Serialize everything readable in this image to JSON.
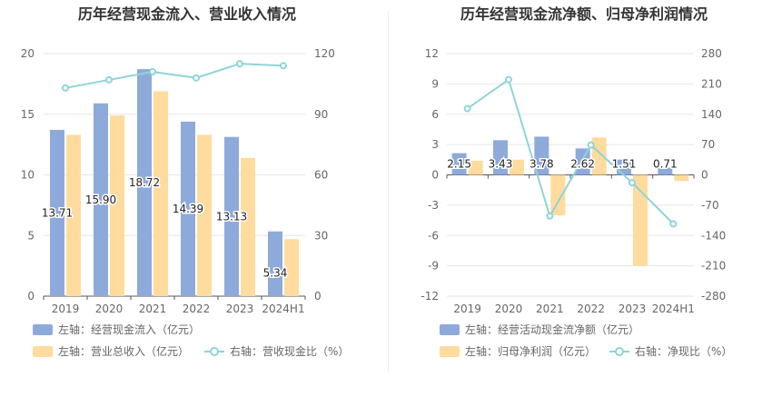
{
  "chart_data": [
    {
      "type": "bar",
      "title": "历年经营现金流入、营业收入情况",
      "categories": [
        "2019",
        "2020",
        "2021",
        "2022",
        "2023",
        "2024H1"
      ],
      "left_axis": {
        "ticks": [
          "0",
          "5",
          "10",
          "15",
          "20"
        ],
        "range": [
          0,
          20
        ]
      },
      "right_axis": {
        "ticks": [
          "0",
          "30",
          "60",
          "90",
          "120"
        ],
        "range": [
          0,
          120
        ]
      },
      "grid": true,
      "legend_placement": "bottom",
      "series": [
        {
          "name": "左轴：经营现金流入（亿元）",
          "type": "bar",
          "axis": "left",
          "color": "#8eaadb",
          "values": [
            13.71,
            15.9,
            18.72,
            14.39,
            13.13,
            5.34
          ],
          "labels": [
            "13.71",
            "15.90",
            "18.72",
            "14.39",
            "13.13",
            "5.34"
          ]
        },
        {
          "name": "左轴：营业总收入（亿元）",
          "type": "bar",
          "axis": "left",
          "color": "#ffdb9e",
          "values": [
            13.3,
            14.9,
            16.9,
            13.3,
            11.4,
            4.7
          ]
        },
        {
          "name": "右轴：营收现金比（%）",
          "type": "line",
          "axis": "right",
          "color": "#8fd3d9",
          "values": [
            103,
            107,
            111,
            108,
            115,
            114
          ]
        }
      ]
    },
    {
      "type": "bar",
      "title": "历年经营现金流净额、归母净利润情况",
      "categories": [
        "2019",
        "2020",
        "2021",
        "2022",
        "2023",
        "2024H1"
      ],
      "left_axis": {
        "ticks": [
          "-12",
          "-9",
          "-6",
          "-3",
          "0",
          "3",
          "6",
          "9",
          "12"
        ],
        "range": [
          -12,
          12
        ]
      },
      "right_axis": {
        "ticks": [
          "-280",
          "-210",
          "-140",
          "-70",
          "0",
          "70",
          "140",
          "210",
          "280"
        ],
        "range": [
          -280,
          280
        ]
      },
      "grid": true,
      "legend_placement": "bottom",
      "series": [
        {
          "name": "左轴：经营活动现金流净额（亿元）",
          "type": "bar",
          "axis": "left",
          "color": "#8eaadb",
          "values": [
            2.15,
            3.43,
            3.78,
            2.62,
            1.51,
            0.71
          ],
          "labels": [
            "2.15",
            "3.43",
            "3.78",
            "2.62",
            "1.51",
            "0.71"
          ]
        },
        {
          "name": "左轴：归母净利润（亿元）",
          "type": "bar",
          "axis": "left",
          "color": "#ffdb9e",
          "values": [
            1.4,
            1.5,
            -4.0,
            3.7,
            -9.0,
            -0.6
          ]
        },
        {
          "name": "右轴：净现比（%）",
          "type": "line",
          "axis": "right",
          "color": "#8fd3d9",
          "values": [
            153,
            220,
            -95,
            69,
            -18,
            -113
          ]
        }
      ]
    }
  ]
}
